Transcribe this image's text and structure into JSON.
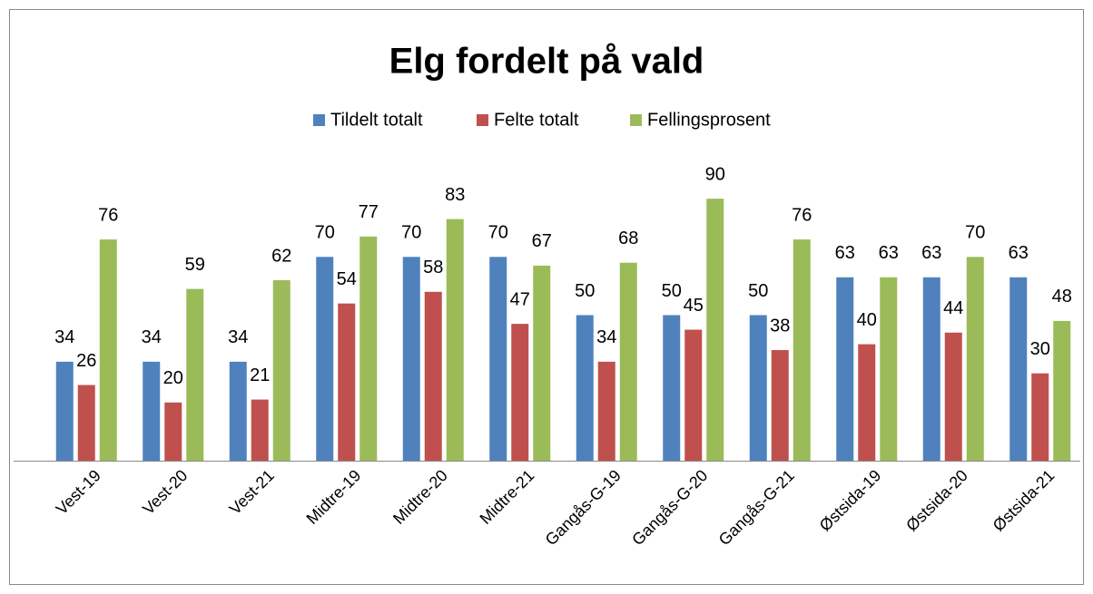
{
  "chart_data": {
    "type": "bar",
    "title": "Elg fordelt på vald",
    "categories": [
      "Vest-19",
      "Vest-20",
      "Vest-21",
      "Midtre-19",
      "Midtre-20",
      "Midtre-21",
      "Gangås-G-19",
      "Gangås-G-20",
      "Gangås-G-21",
      "Østsida-19",
      "Østsida-20",
      "Østsida-21"
    ],
    "series": [
      {
        "name": "Tildelt totalt",
        "color": "#4f81bd",
        "values": [
          34,
          34,
          34,
          70,
          70,
          70,
          50,
          50,
          50,
          63,
          63,
          63
        ]
      },
      {
        "name": "Felte totalt",
        "color": "#c0504d",
        "values": [
          26,
          20,
          21,
          54,
          58,
          47,
          34,
          45,
          38,
          40,
          44,
          30
        ]
      },
      {
        "name": "Fellingsprosent",
        "color": "#9bbb59",
        "values": [
          76,
          59,
          62,
          77,
          83,
          67,
          68,
          90,
          76,
          63,
          70,
          48
        ]
      }
    ],
    "legend": "top"
  }
}
